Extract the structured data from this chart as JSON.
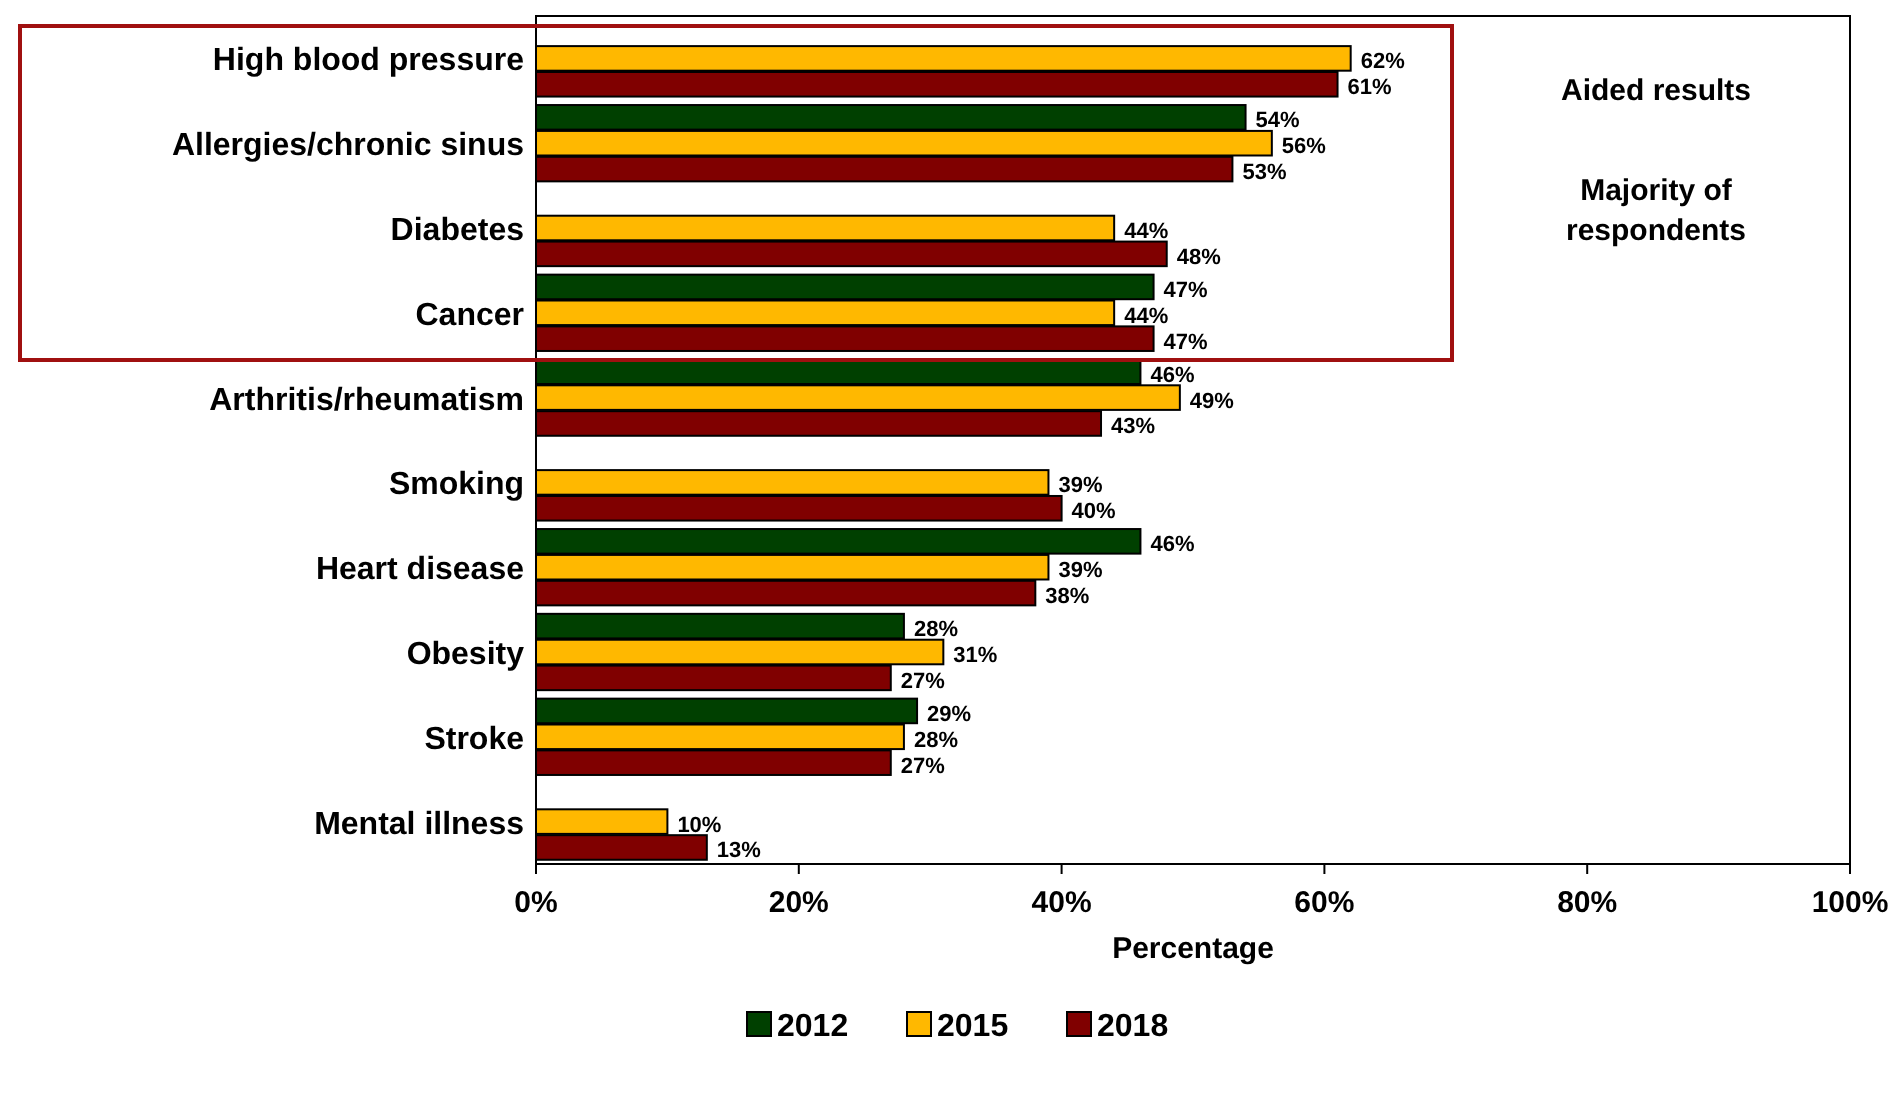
{
  "chart_data": {
    "type": "bar",
    "orientation": "horizontal",
    "xlabel": "Percentage",
    "categories": [
      "High blood pressure",
      "Allergies/chronic sinus",
      "Diabetes",
      "Cancer",
      "Arthritis/rheumatism",
      "Smoking",
      "Heart disease",
      "Obesity",
      "Stroke",
      "Mental illness"
    ],
    "series": [
      {
        "name": "2012",
        "color": "#004000",
        "values": [
          null,
          54,
          null,
          47,
          46,
          null,
          46,
          28,
          29,
          null
        ],
        "value_labels": [
          null,
          "54%",
          null,
          "47%",
          "46%",
          null,
          "46%",
          "28%",
          "29%",
          null
        ]
      },
      {
        "name": "2015",
        "color": "#ffb800",
        "values": [
          62,
          56,
          44,
          44,
          49,
          39,
          39,
          31,
          28,
          10
        ],
        "value_labels": [
          "62%",
          "56%",
          "44%",
          "44%",
          "49%",
          "39%",
          "39%",
          "31%",
          "28%",
          "10%"
        ]
      },
      {
        "name": "2018",
        "color": "#800000",
        "values": [
          61,
          53,
          48,
          47,
          43,
          40,
          38,
          27,
          27,
          13
        ],
        "value_labels": [
          "61%",
          "53%",
          "48%",
          "47%",
          "43%",
          "40%",
          "38%",
          "27%",
          "27%",
          "13%"
        ]
      }
    ],
    "xlim": [
      0,
      100
    ],
    "xticks": [
      {
        "value": 0,
        "label": "0%"
      },
      {
        "value": 20,
        "label": "20%"
      },
      {
        "value": 40,
        "label": "40%"
      },
      {
        "value": 60,
        "label": "60%"
      },
      {
        "value": 80,
        "label": "80%"
      },
      {
        "value": 100,
        "label": "100%"
      }
    ],
    "annotations": [
      "Aided results",
      "Majority of respondents"
    ],
    "grid": false,
    "legend": "bottom"
  }
}
